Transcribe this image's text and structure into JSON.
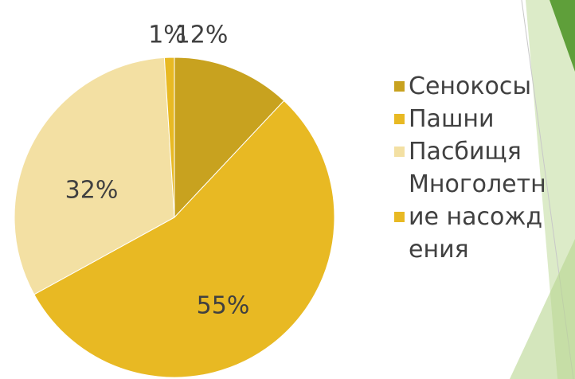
{
  "chart_data": {
    "type": "pie",
    "categories": [
      "Сенокосы",
      "Пашни",
      "Пасбищя",
      "Многолетние насождения"
    ],
    "values": [
      12,
      55,
      32,
      1
    ],
    "value_labels": [
      "12%",
      "55%",
      "32%",
      "1%"
    ],
    "colors": [
      "#c8a21f",
      "#e8b923",
      "#f3e0a3",
      "#e8b923"
    ],
    "legend": "right"
  }
}
